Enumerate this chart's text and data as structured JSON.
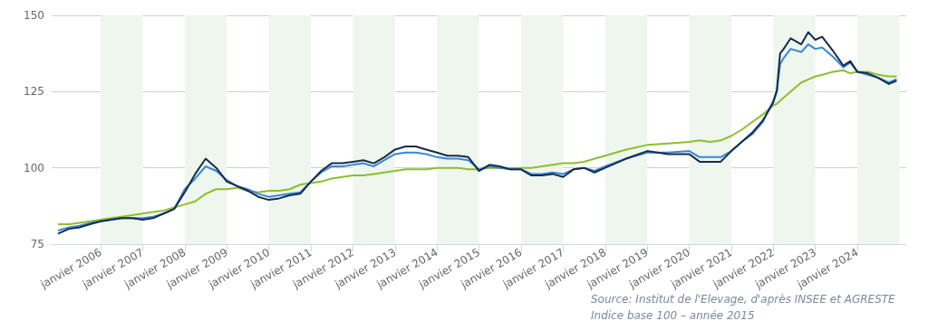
{
  "chart_data": {
    "type": "line",
    "x": [
      "2005-01",
      "2005-04",
      "2005-07",
      "2005-10",
      "2006-01",
      "2006-04",
      "2006-07",
      "2006-10",
      "2007-01",
      "2007-04",
      "2007-07",
      "2007-10",
      "2008-01",
      "2008-04",
      "2008-07",
      "2008-10",
      "2009-01",
      "2009-04",
      "2009-07",
      "2009-10",
      "2010-01",
      "2010-04",
      "2010-07",
      "2010-10",
      "2011-01",
      "2011-04",
      "2011-07",
      "2011-10",
      "2012-01",
      "2012-04",
      "2012-07",
      "2012-10",
      "2013-01",
      "2013-04",
      "2013-07",
      "2013-10",
      "2014-01",
      "2014-04",
      "2014-07",
      "2014-10",
      "2015-01",
      "2015-04",
      "2015-07",
      "2015-10",
      "2016-01",
      "2016-04",
      "2016-07",
      "2016-10",
      "2017-01",
      "2017-04",
      "2017-07",
      "2017-10",
      "2018-01",
      "2018-07",
      "2019-01",
      "2019-07",
      "2020-01",
      "2020-04",
      "2020-07",
      "2020-10",
      "2021-01",
      "2021-04",
      "2021-07",
      "2021-10",
      "2022-01",
      "2022-02",
      "2022-03",
      "2022-04",
      "2022-06",
      "2022-09",
      "2022-11",
      "2023-01",
      "2023-03",
      "2023-06",
      "2023-09",
      "2023-11",
      "2024-01",
      "2024-04",
      "2024-07",
      "2024-10",
      "2024-12"
    ],
    "series": [
      {
        "color": "#8cbf2c",
        "values": [
          81.5,
          81.5,
          82,
          82.5,
          83,
          83.5,
          84,
          84.5,
          85,
          85.5,
          86,
          87,
          88,
          89,
          91.5,
          93,
          93,
          93.5,
          92.5,
          92,
          92.5,
          92.5,
          93,
          94.5,
          95,
          95.5,
          96.5,
          97,
          97.5,
          97.5,
          98,
          98.5,
          99,
          99.5,
          99.5,
          99.5,
          100,
          100,
          100,
          99.5,
          99.5,
          100,
          100,
          100,
          100,
          100,
          100.5,
          101,
          101.5,
          101.5,
          102,
          103,
          104,
          106,
          107.5,
          108,
          108.5,
          109,
          108.5,
          109,
          110.5,
          112.5,
          115,
          117.5,
          120.5,
          121,
          122,
          123,
          125,
          128,
          129,
          130,
          130.5,
          131.5,
          132,
          131,
          131.5,
          131.5,
          130.5,
          130,
          130
        ]
      },
      {
        "color": "#3a87d6",
        "values": [
          79.5,
          80.5,
          81,
          82,
          82.5,
          83,
          83.5,
          83.5,
          83.5,
          84,
          85,
          86.5,
          93,
          96.5,
          100.5,
          99,
          96,
          94,
          93,
          91.5,
          90.5,
          91,
          91.5,
          92,
          95.5,
          98.5,
          100.5,
          100.5,
          101,
          101.5,
          100.5,
          102.5,
          104.5,
          105,
          105,
          104.5,
          103.5,
          103,
          103,
          102.5,
          99.5,
          100.5,
          100,
          99.5,
          99.5,
          98,
          98,
          98.5,
          98,
          99.5,
          100,
          99,
          100.5,
          103,
          105,
          105,
          105.5,
          103.5,
          103.5,
          103.5,
          105.5,
          108.5,
          111,
          115,
          122,
          125,
          134,
          136,
          139,
          138,
          140.5,
          139,
          139.5,
          136.5,
          133,
          134.5,
          131.5,
          130.5,
          129.5,
          128,
          129
        ]
      },
      {
        "color": "#172b4d",
        "values": [
          78.5,
          80,
          80.5,
          81.5,
          82.5,
          83,
          83.5,
          83.5,
          83,
          83.5,
          85,
          86.5,
          92,
          98,
          103,
          100,
          95.5,
          94,
          92.5,
          90.5,
          89.5,
          90,
          91,
          91.5,
          95.5,
          99,
          101.5,
          101.5,
          102,
          102.5,
          101.5,
          103.5,
          106,
          107,
          107,
          106,
          105,
          104,
          104,
          103.5,
          99,
          101,
          100.5,
          99.5,
          99.5,
          97.5,
          97.5,
          98,
          97,
          99.5,
          100,
          98.5,
          100,
          103,
          105.5,
          104.5,
          104.5,
          102,
          102,
          102,
          105.5,
          108.5,
          111.5,
          115.5,
          121.5,
          125.5,
          137.5,
          139,
          142.5,
          140.5,
          144.5,
          142,
          143,
          138.5,
          133.5,
          135,
          131.5,
          131,
          129.5,
          127.5,
          128.5
        ]
      }
    ],
    "xlim": [
      "2004-11",
      "2025-03"
    ],
    "xticks": [
      {
        "value": "2006-01",
        "label": "janvier 2006"
      },
      {
        "value": "2007-01",
        "label": "janvier 2007"
      },
      {
        "value": "2008-01",
        "label": "janvier 2008"
      },
      {
        "value": "2009-01",
        "label": "janvier 2009"
      },
      {
        "value": "2010-01",
        "label": "janvier 2010"
      },
      {
        "value": "2011-01",
        "label": "janvier 2011"
      },
      {
        "value": "2012-01",
        "label": "janvier 2012"
      },
      {
        "value": "2013-01",
        "label": "janvier 2013"
      },
      {
        "value": "2014-01",
        "label": "janvier 2014"
      },
      {
        "value": "2015-01",
        "label": "janvier 2015"
      },
      {
        "value": "2016-01",
        "label": "janvier 2016"
      },
      {
        "value": "2017-01",
        "label": "janvier 2017"
      },
      {
        "value": "2018-01",
        "label": "janvier 2018"
      },
      {
        "value": "2019-01",
        "label": "janvier 2019"
      },
      {
        "value": "2020-01",
        "label": "janvier 2020"
      },
      {
        "value": "2021-01",
        "label": "janvier 2021"
      },
      {
        "value": "2022-01",
        "label": "janvier 2022"
      },
      {
        "value": "2023-01",
        "label": "janvier 2023"
      },
      {
        "value": "2024-01",
        "label": "janvier 2024"
      }
    ],
    "ylim": [
      75,
      150
    ],
    "yticks": [
      75,
      100,
      125,
      150
    ],
    "grid": "y",
    "marker": "none",
    "line_style": "solid",
    "bands": [
      {
        "axis": "x",
        "from": "2006-01",
        "to": "2007-01",
        "color": "#eef6ee"
      },
      {
        "axis": "x",
        "from": "2008-01",
        "to": "2009-01",
        "color": "#eef6ee"
      },
      {
        "axis": "x",
        "from": "2010-01",
        "to": "2011-01",
        "color": "#eef6ee"
      },
      {
        "axis": "x",
        "from": "2012-01",
        "to": "2013-01",
        "color": "#eef6ee"
      },
      {
        "axis": "x",
        "from": "2014-01",
        "to": "2015-01",
        "color": "#eef6ee"
      },
      {
        "axis": "x",
        "from": "2016-01",
        "to": "2017-01",
        "color": "#eef6ee"
      },
      {
        "axis": "x",
        "from": "2018-01",
        "to": "2019-01",
        "color": "#eef6ee"
      },
      {
        "axis": "x",
        "from": "2020-01",
        "to": "2021-01",
        "color": "#eef6ee"
      },
      {
        "axis": "x",
        "from": "2022-01",
        "to": "2023-01",
        "color": "#eef6ee"
      },
      {
        "axis": "x",
        "from": "2024-01",
        "to": "2025-01",
        "color": "#eef6ee"
      }
    ],
    "annotations": [
      "Source: Institut de l'Elevage, d'après INSEE et AGRESTE",
      "Indice base 100 – année 2015"
    ]
  }
}
